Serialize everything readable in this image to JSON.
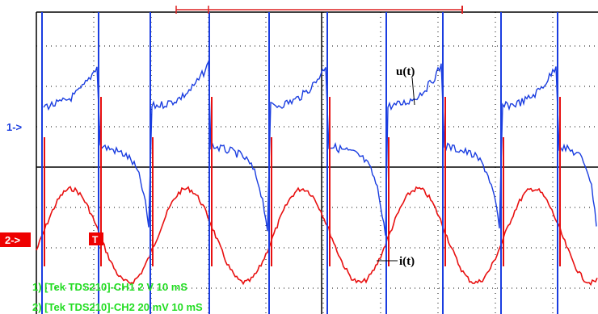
{
  "labels": {
    "u": "u(t)",
    "i": "i(t)",
    "ch1": "1->",
    "ch2": "2->",
    "trigger": "T"
  },
  "readout": [
    "1) [Tek TDS210]-CH1  2 V   10 mS",
    "2) [Tek TDS210]-CH2  20 mV   10 mS"
  ]
}
